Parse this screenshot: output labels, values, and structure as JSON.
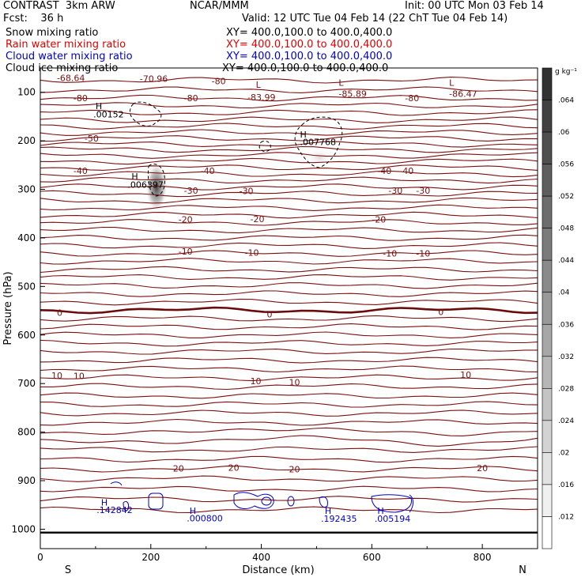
{
  "header": {
    "title": "CONTRAST  3km ARW",
    "center": "NCAR/MMM",
    "init": "Init: 00 UTC Mon 03 Feb 14",
    "fcst": "Fcst:    36 h",
    "valid": "Valid: 12 UTC Tue 04 Feb 14 (22 ChT Tue 04 Feb 14)"
  },
  "fields": [
    {
      "name": "Snow mixing ratio",
      "xy": "XY= 400.0,100.0 to 400.0,400.0",
      "color": "#000000"
    },
    {
      "name": "Rain water mixing ratio",
      "xy": "XY= 400.0,100.0 to 400.0,400.0",
      "color": "#e00000"
    },
    {
      "name": "Cloud water mixing ratio",
      "xy": "XY= 400.0,100.0 to 400.0,400.0",
      "color": "#0000cc"
    },
    {
      "name": "Cloud ice mixing ratio",
      "xy": "XY= 400.0,100.0 to 400.0,400.0",
      "color": "#000000"
    }
  ],
  "chart_data": {
    "type": "contour",
    "xlabel": "Distance (km)",
    "ylabel": "Pressure (hPa)",
    "xlim": [
      0,
      900
    ],
    "ylim": [
      1040,
      50
    ],
    "x_ticks": [
      0,
      200,
      400,
      600,
      800
    ],
    "y_ticks": [
      100,
      200,
      300,
      400,
      500,
      600,
      700,
      800,
      900,
      1000
    ],
    "x_end_labels": {
      "left": "S",
      "right": "N"
    },
    "colorbar": {
      "unit": "g kg⁻¹",
      "labels": [
        ".012",
        ".016",
        ".02",
        ".024",
        ".028",
        ".032",
        ".036",
        ".04",
        ".044",
        ".048",
        ".052",
        ".056",
        ".06",
        ".064"
      ],
      "min": 0.008,
      "max": 0.068
    },
    "temperature_contour_labels": [
      {
        "x": 30,
        "p": 70,
        "text": "-68.64"
      },
      {
        "x": 180,
        "p": 72,
        "text": "-70.96"
      },
      {
        "x": 310,
        "p": 77,
        "text": "-80"
      },
      {
        "x": 60,
        "p": 112,
        "text": "-80"
      },
      {
        "x": 260,
        "p": 112,
        "text": "-80"
      },
      {
        "x": 660,
        "p": 112,
        "text": "-80"
      },
      {
        "x": 80,
        "p": 195,
        "text": "-50"
      },
      {
        "x": 60,
        "p": 262,
        "text": "-40"
      },
      {
        "x": 290,
        "p": 262,
        "text": "-40"
      },
      {
        "x": 610,
        "p": 262,
        "text": "-40"
      },
      {
        "x": 650,
        "p": 262,
        "text": "-40"
      },
      {
        "x": 260,
        "p": 302,
        "text": "-30"
      },
      {
        "x": 360,
        "p": 303,
        "text": "-30"
      },
      {
        "x": 630,
        "p": 302,
        "text": "-30"
      },
      {
        "x": 680,
        "p": 302,
        "text": "-30"
      },
      {
        "x": 250,
        "p": 362,
        "text": "-20"
      },
      {
        "x": 380,
        "p": 361,
        "text": "-20"
      },
      {
        "x": 600,
        "p": 362,
        "text": "-20"
      },
      {
        "x": 250,
        "p": 428,
        "text": "-10"
      },
      {
        "x": 370,
        "p": 430,
        "text": "-10"
      },
      {
        "x": 620,
        "p": 432,
        "text": "-10"
      },
      {
        "x": 680,
        "p": 432,
        "text": "-10"
      },
      {
        "x": 30,
        "p": 554,
        "text": "0"
      },
      {
        "x": 410,
        "p": 557,
        "text": "0"
      },
      {
        "x": 720,
        "p": 552,
        "text": "0"
      },
      {
        "x": 20,
        "p": 683,
        "text": "10"
      },
      {
        "x": 60,
        "p": 684,
        "text": "10"
      },
      {
        "x": 380,
        "p": 695,
        "text": "10"
      },
      {
        "x": 450,
        "p": 697,
        "text": "10"
      },
      {
        "x": 760,
        "p": 682,
        "text": "10"
      },
      {
        "x": 240,
        "p": 875,
        "text": "20"
      },
      {
        "x": 340,
        "p": 873,
        "text": "20"
      },
      {
        "x": 450,
        "p": 876,
        "text": "20"
      },
      {
        "x": 790,
        "p": 874,
        "text": "20"
      }
    ],
    "extrema_labels": [
      {
        "x": 390,
        "p": 84,
        "text": "L"
      },
      {
        "x": 540,
        "p": 80,
        "text": "L"
      },
      {
        "x": 740,
        "p": 80,
        "text": "L"
      },
      {
        "x": 375,
        "p": 110,
        "text": "-83.99"
      },
      {
        "x": 540,
        "p": 103,
        "text": "-85.89"
      },
      {
        "x": 740,
        "p": 103,
        "text": "-86.47"
      },
      {
        "x": 100,
        "p": 128,
        "text": "H"
      },
      {
        "x": 96,
        "p": 145,
        "text": ".00152"
      },
      {
        "x": 470,
        "p": 187,
        "text": "H"
      },
      {
        "x": 470,
        "p": 202,
        "text": ".007768"
      },
      {
        "x": 165,
        "p": 273,
        "text": "H"
      },
      {
        "x": 158,
        "p": 290,
        "text": ".006397"
      },
      {
        "x": 110,
        "p": 945,
        "text": "H",
        "color": "#0000cc"
      },
      {
        "x": 102,
        "p": 960,
        "text": ".142842",
        "color": "#0000cc"
      },
      {
        "x": 270,
        "p": 962,
        "text": "H",
        "color": "#0000cc"
      },
      {
        "x": 265,
        "p": 977,
        "text": ".000800",
        "color": "#0000cc"
      },
      {
        "x": 515,
        "p": 962,
        "text": "H",
        "color": "#0000cc"
      },
      {
        "x": 508,
        "p": 978,
        "text": ".192435",
        "color": "#0000cc"
      },
      {
        "x": 610,
        "p": 962,
        "text": "H",
        "color": "#0000cc"
      },
      {
        "x": 605,
        "p": 978,
        "text": ".005194",
        "color": "#0000cc"
      }
    ]
  }
}
